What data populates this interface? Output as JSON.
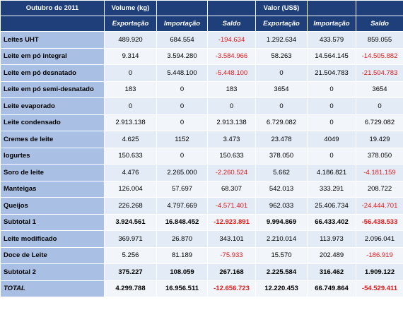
{
  "colors": {
    "header_bg": "#1f3f7a",
    "label_bg": "#a9c0e4",
    "row_odd_bg": "#e3ebf6",
    "row_even_bg": "#f2f5fa",
    "negative_text": "#e31b1b"
  },
  "header": {
    "period": "Outubro de 2011",
    "group_volume": "Volume (kg)",
    "group_valor": "Valor (US$)",
    "sub": [
      "Exportação",
      "Importação",
      "Saldo",
      "Exportação",
      "Importação",
      "Saldo"
    ]
  },
  "rows": [
    {
      "label": "Leites UHT",
      "values": [
        "489.920",
        "684.554",
        "-194.634",
        "1.292.634",
        "433.579",
        "859.055"
      ]
    },
    {
      "label": "Leite em pó integral",
      "values": [
        "9.314",
        "3.594.280",
        "-3.584.966",
        "58.263",
        "14.564.145",
        "-14.505.882"
      ]
    },
    {
      "label": "Leite em pó desnatado",
      "values": [
        "0",
        "5.448.100",
        "-5.448.100",
        "0",
        "21.504.783",
        "-21.504.783"
      ]
    },
    {
      "label": "Leite em pó semi-desnatado",
      "values": [
        "183",
        "0",
        "183",
        "3654",
        "0",
        "3654"
      ]
    },
    {
      "label": "Leite evaporado",
      "values": [
        "0",
        "0",
        "0",
        "0",
        "0",
        "0"
      ]
    },
    {
      "label": "Leite condensado",
      "values": [
        "2.913.138",
        "0",
        "2.913.138",
        "6.729.082",
        "0",
        "6.729.082"
      ]
    },
    {
      "label": "Cremes de leite",
      "values": [
        "4.625",
        "1152",
        "3.473",
        "23.478",
        "4049",
        "19.429"
      ]
    },
    {
      "label": "Iogurtes",
      "values": [
        "150.633",
        "0",
        "150.633",
        "378.050",
        "0",
        "378.050"
      ]
    },
    {
      "label": "Soro de leite",
      "values": [
        "4.476",
        "2.265.000",
        "-2.260.524",
        "5.662",
        "4.186.821",
        "-4.181.159"
      ]
    },
    {
      "label": "Manteigas",
      "values": [
        "126.004",
        "57.697",
        "68.307",
        "542.013",
        "333.291",
        "208.722"
      ]
    },
    {
      "label": "Queijos",
      "values": [
        "226.268",
        "4.797.669",
        "-4.571.401",
        "962.033",
        "25.406.734",
        "-24.444.701"
      ]
    },
    {
      "label": "Subtotal 1",
      "values": [
        "3.924.561",
        "16.848.452",
        "-12.923.891",
        "9.994.869",
        "66.433.402",
        "-56.438.533"
      ]
    },
    {
      "label": "Leite modificado",
      "values": [
        "369.971",
        "26.870",
        "343.101",
        "2.210.014",
        "113.973",
        "2.096.041"
      ]
    },
    {
      "label": "Doce de Leite",
      "values": [
        "5.256",
        "81.189",
        "-75.933",
        "15.570",
        "202.489",
        "-186.919"
      ]
    },
    {
      "label": "Subtotal 2",
      "values": [
        "375.227",
        "108.059",
        "267.168",
        "2.225.584",
        "316.462",
        "1.909.122"
      ]
    },
    {
      "label": "TOTAL",
      "values": [
        "4.299.788",
        "16.956.511",
        "-12.656.723",
        "12.220.453",
        "66.749.864",
        "-54.529.411"
      ]
    }
  ]
}
